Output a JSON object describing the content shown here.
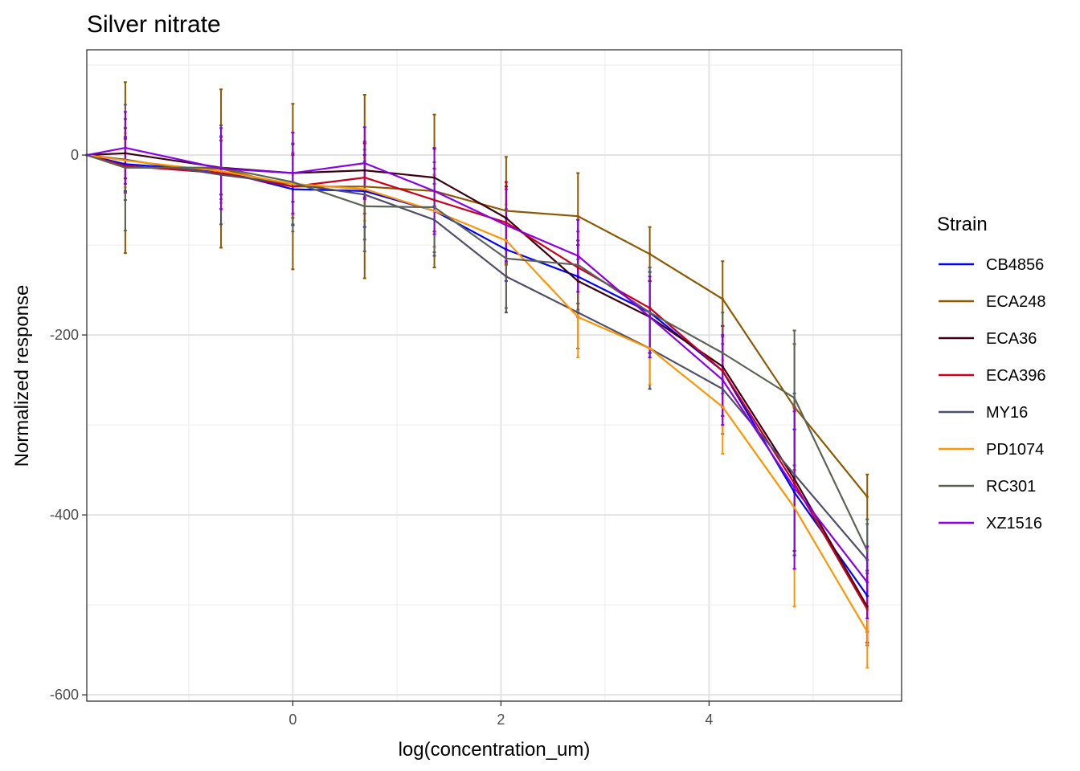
{
  "chart_data": {
    "type": "line",
    "title": "Silver nitrate",
    "xlabel": "log(concentration_um)",
    "ylabel": "Normalized response",
    "xlim": [
      -1.98,
      5.85
    ],
    "ylim": [
      -607,
      117
    ],
    "x_ticks": [
      0,
      2,
      4
    ],
    "x_tick_labels": [
      "0",
      "2",
      "4"
    ],
    "y_ticks": [
      0,
      -200,
      -400,
      -600
    ],
    "y_tick_labels": [
      "0",
      "-200",
      "-400",
      "-600"
    ],
    "grid": true,
    "legend_title": "Strain",
    "legend_position": "right",
    "x": [
      -1.98,
      -1.61,
      -0.69,
      0.0,
      0.69,
      1.36,
      2.05,
      2.74,
      3.43,
      4.13,
      4.82,
      5.52
    ],
    "series": [
      {
        "name": "CB4856",
        "color": "#0000ff",
        "values": [
          0,
          -10,
          -18,
          -38,
          -40,
          -62,
          -105,
          -135,
          -175,
          -240,
          -375,
          -490
        ],
        "err": [
          0,
          30,
          35,
          40,
          40,
          40,
          35,
          40,
          45,
          50,
          70,
          40
        ]
      },
      {
        "name": "ECA248",
        "color": "#8b5a00",
        "values": [
          0,
          -14,
          -15,
          -35,
          -35,
          -40,
          -62,
          -68,
          -110,
          -160,
          -280,
          -380
        ],
        "err": [
          0,
          95,
          88,
          92,
          102,
          85,
          60,
          48,
          30,
          42,
          70,
          25
        ]
      },
      {
        "name": "ECA36",
        "color": "#3b0010",
        "values": [
          0,
          2,
          -14,
          -20,
          -17,
          -25,
          -70,
          -140,
          -180,
          -235,
          -360,
          -502
        ],
        "err": [
          0,
          28,
          30,
          32,
          30,
          32,
          35,
          40,
          40,
          45,
          80,
          40
        ]
      },
      {
        "name": "ECA396",
        "color": "#c8001e",
        "values": [
          0,
          -12,
          -20,
          -35,
          -25,
          -50,
          -75,
          -125,
          -170,
          -240,
          -365,
          -505
        ],
        "err": [
          0,
          30,
          40,
          35,
          40,
          35,
          45,
          40,
          45,
          50,
          80,
          40
        ]
      },
      {
        "name": "MY16",
        "color": "#4f4f6b",
        "values": [
          0,
          -5,
          -22,
          -32,
          -44,
          -72,
          -135,
          -175,
          -215,
          -260,
          -355,
          -450
        ],
        "err": [
          0,
          45,
          55,
          45,
          50,
          40,
          40,
          40,
          45,
          50,
          90,
          40
        ]
      },
      {
        "name": "PD1074",
        "color": "#ff9500",
        "values": [
          0,
          -6,
          -18,
          -32,
          -38,
          -62,
          -95,
          -180,
          -215,
          -280,
          -392,
          -530
        ],
        "err": [
          0,
          30,
          35,
          35,
          35,
          40,
          40,
          45,
          40,
          52,
          110,
          40
        ]
      },
      {
        "name": "RC301",
        "color": "#5a6356",
        "values": [
          0,
          -14,
          -14,
          -30,
          -57,
          -58,
          -115,
          -122,
          -175,
          -220,
          -270,
          -440
        ],
        "err": [
          0,
          70,
          35,
          55,
          50,
          50,
          55,
          50,
          50,
          45,
          75,
          35
        ]
      },
      {
        "name": "XZ1516",
        "color": "#8a00e6",
        "values": [
          0,
          8,
          -15,
          -20,
          -9,
          -40,
          -78,
          -112,
          -180,
          -250,
          -370,
          -475
        ],
        "err": [
          0,
          40,
          45,
          45,
          40,
          48,
          40,
          40,
          45,
          50,
          90,
          40
        ]
      }
    ]
  }
}
